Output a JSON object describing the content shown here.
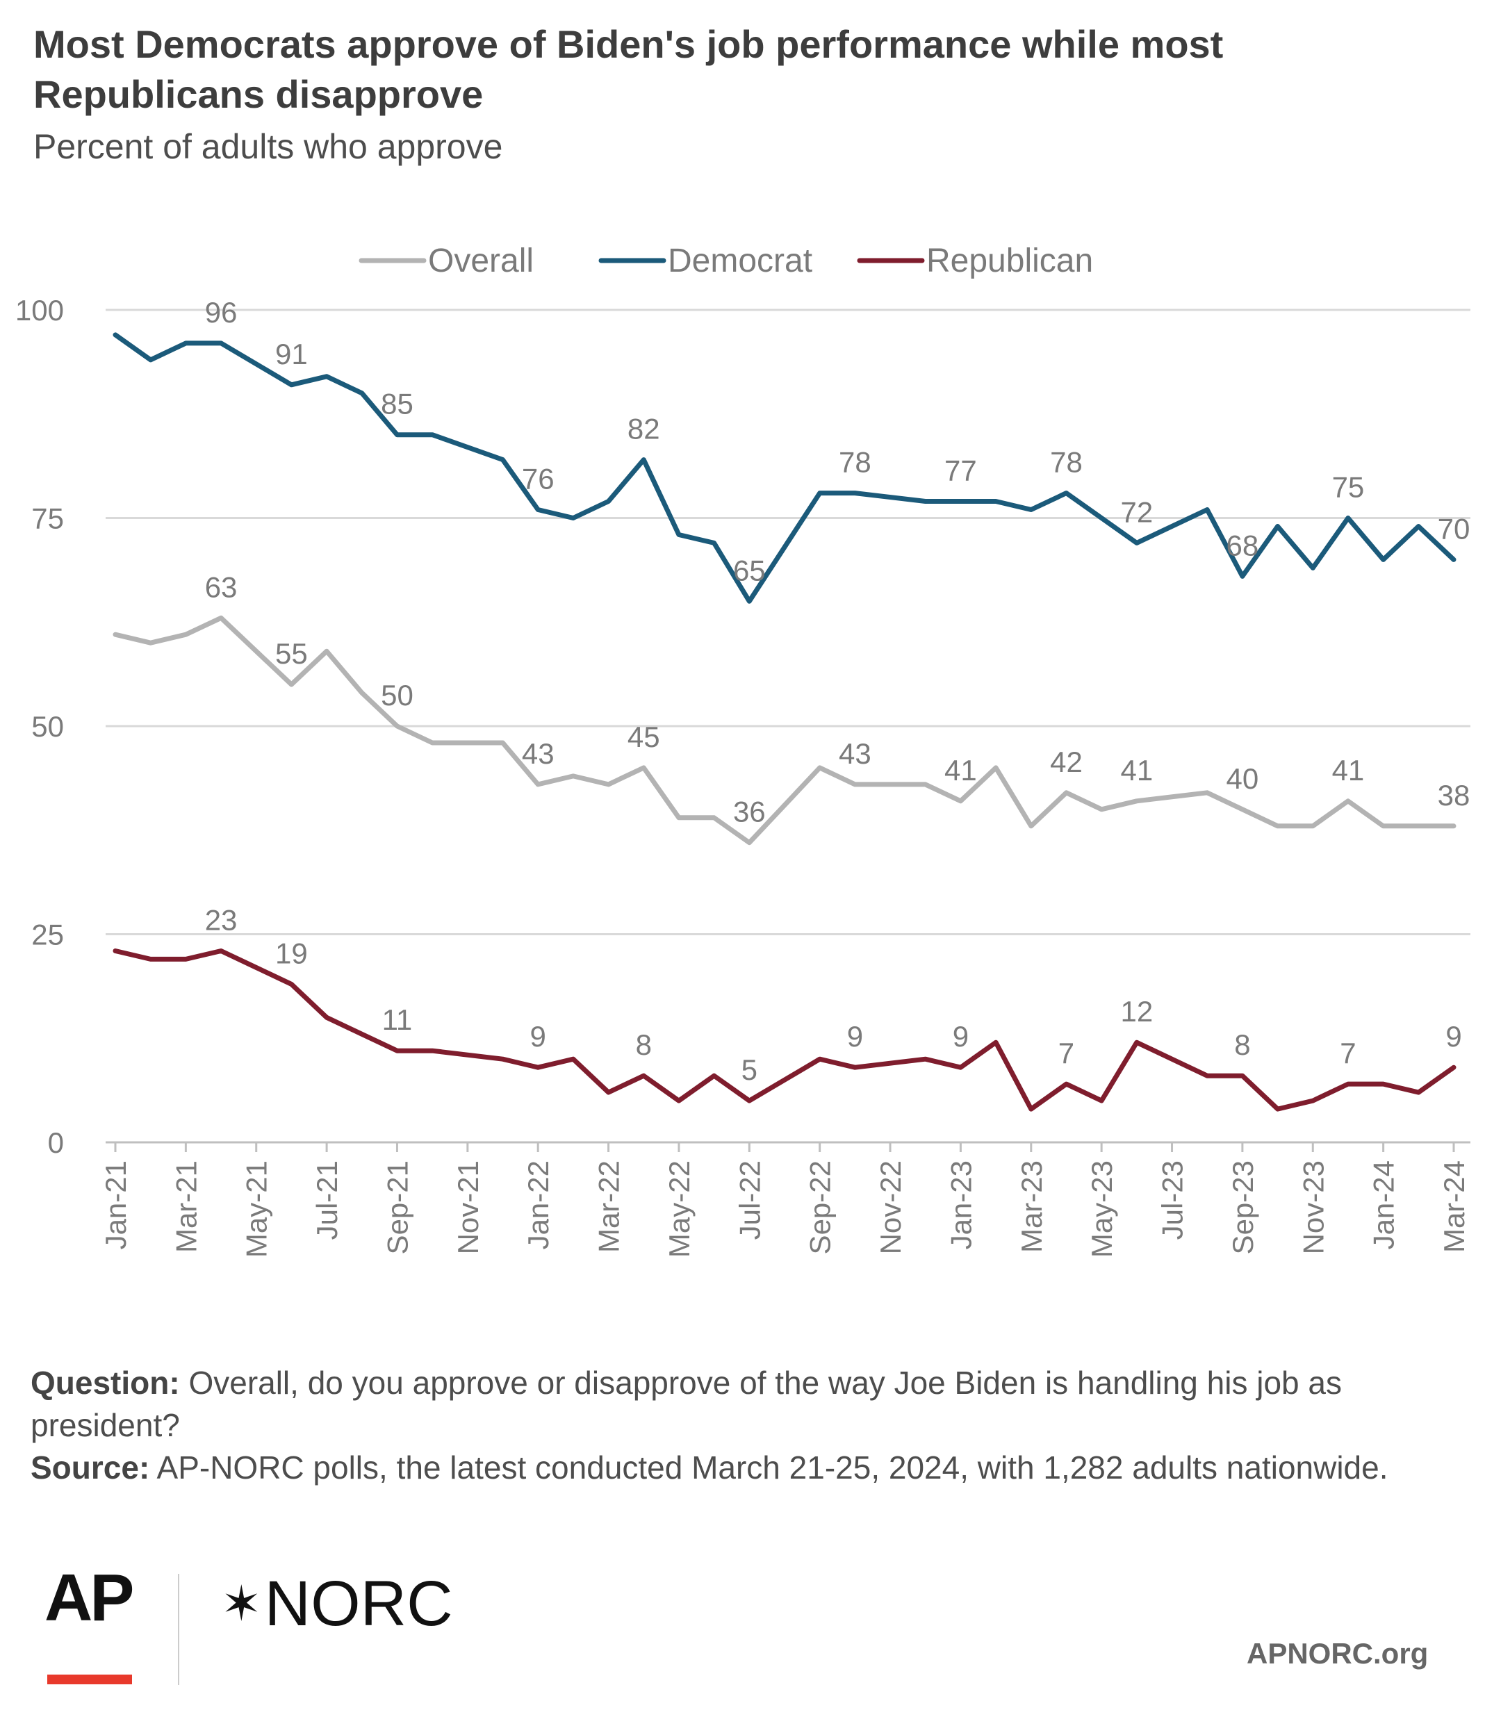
{
  "chart_data": {
    "type": "line",
    "title": "Most Democrats approve of Biden's job performance while most Republicans disapprove",
    "subtitle": "Percent of adults who approve",
    "xlabel": "",
    "ylabel": "",
    "ylim": [
      0,
      100
    ],
    "yticks": [
      0,
      25,
      50,
      75,
      100
    ],
    "grid": true,
    "legend_position": "top",
    "x": [
      "Jan-21",
      "Feb-21",
      "Mar-21",
      "Apr-21",
      "May-21",
      "Jun-21",
      "Jul-21",
      "Aug-21",
      "Sep-21",
      "Oct-21",
      "Nov-21",
      "Dec-21",
      "Jan-22",
      "Feb-22",
      "Mar-22",
      "Apr-22",
      "May-22",
      "Jun-22",
      "Jul-22",
      "Aug-22",
      "Sep-22",
      "Oct-22",
      "Nov-22",
      "Dec-22",
      "Jan-23",
      "Feb-23",
      "Mar-23",
      "Apr-23",
      "May-23",
      "Jun-23",
      "Jul-23",
      "Aug-23",
      "Sep-23",
      "Oct-23",
      "Nov-23",
      "Dec-23",
      "Jan-24",
      "Feb-24",
      "Mar-24"
    ],
    "x_tick_labels": [
      "Jan-21",
      "Mar-21",
      "May-21",
      "Jul-21",
      "Sep-21",
      "Nov-21",
      "Jan-22",
      "Mar-22",
      "May-22",
      "Jul-22",
      "Sep-22",
      "Nov-22",
      "Jan-23",
      "Mar-23",
      "May-23",
      "Jul-23",
      "Sep-23",
      "Nov-23",
      "Jan-24",
      "Mar-24"
    ],
    "series": [
      {
        "name": "Overall",
        "color": "#b3b3b3",
        "values": [
          61,
          60,
          61,
          63,
          59,
          55,
          59,
          54,
          50,
          48,
          48,
          48,
          43,
          44,
          43,
          45,
          39,
          39,
          36,
          null,
          45,
          43,
          43,
          43,
          41,
          45,
          38,
          42,
          40,
          41,
          null,
          42,
          40,
          38,
          38,
          41,
          38,
          38,
          38
        ],
        "labels": [
          {
            "i": 3,
            "text": "63"
          },
          {
            "i": 5,
            "text": "55"
          },
          {
            "i": 8,
            "text": "50"
          },
          {
            "i": 12,
            "text": "43"
          },
          {
            "i": 15,
            "text": "45"
          },
          {
            "i": 18,
            "text": "36"
          },
          {
            "i": 21,
            "text": "43"
          },
          {
            "i": 24,
            "text": "41"
          },
          {
            "i": 27,
            "text": "42"
          },
          {
            "i": 29,
            "text": "41"
          },
          {
            "i": 32,
            "text": "40"
          },
          {
            "i": 35,
            "text": "41"
          },
          {
            "i": 38,
            "text": "38"
          }
        ]
      },
      {
        "name": "Democrat",
        "color": "#1b5a7a",
        "values": [
          97,
          94,
          96,
          96,
          null,
          91,
          92,
          90,
          85,
          85,
          null,
          82,
          76,
          75,
          77,
          82,
          73,
          72,
          65,
          null,
          78,
          78,
          null,
          77,
          77,
          77,
          76,
          78,
          null,
          72,
          null,
          76,
          68,
          74,
          69,
          75,
          70,
          74,
          70
        ],
        "labels": [
          {
            "i": 3,
            "text": "96"
          },
          {
            "i": 5,
            "text": "91"
          },
          {
            "i": 8,
            "text": "85"
          },
          {
            "i": 12,
            "text": "76"
          },
          {
            "i": 15,
            "text": "82"
          },
          {
            "i": 18,
            "text": "65"
          },
          {
            "i": 21,
            "text": "78"
          },
          {
            "i": 24,
            "text": "77"
          },
          {
            "i": 27,
            "text": "78"
          },
          {
            "i": 29,
            "text": "72"
          },
          {
            "i": 32,
            "text": "68"
          },
          {
            "i": 35,
            "text": "75"
          },
          {
            "i": 38,
            "text": "70"
          }
        ]
      },
      {
        "name": "Republican",
        "color": "#7f1d2d",
        "values": [
          23,
          22,
          22,
          23,
          21,
          19,
          15,
          13,
          11,
          11,
          null,
          10,
          9,
          10,
          6,
          8,
          5,
          8,
          5,
          null,
          10,
          9,
          null,
          10,
          9,
          12,
          4,
          7,
          5,
          12,
          null,
          8,
          8,
          4,
          5,
          7,
          7,
          6,
          9
        ],
        "labels": [
          {
            "i": 3,
            "text": "23"
          },
          {
            "i": 5,
            "text": "19"
          },
          {
            "i": 8,
            "text": "11"
          },
          {
            "i": 12,
            "text": "9"
          },
          {
            "i": 15,
            "text": "8"
          },
          {
            "i": 18,
            "text": "5"
          },
          {
            "i": 21,
            "text": "9"
          },
          {
            "i": 24,
            "text": "9"
          },
          {
            "i": 27,
            "text": "7"
          },
          {
            "i": 29,
            "text": "12"
          },
          {
            "i": 32,
            "text": "8"
          },
          {
            "i": 35,
            "text": "7"
          },
          {
            "i": 38,
            "text": "9"
          }
        ]
      }
    ]
  },
  "notes": {
    "question_label": "Question:",
    "question_text": " Overall, do you approve or disapprove of the way Joe Biden is handling his job as president?",
    "source_label": "Source:",
    "source_text": " AP-NORC polls, the latest conducted March 21-25, 2024, with 1,282 adults nationwide."
  },
  "branding": {
    "ap": "AP",
    "norc_star": "✶",
    "norc": "NORC",
    "site": "APNORC.org"
  }
}
